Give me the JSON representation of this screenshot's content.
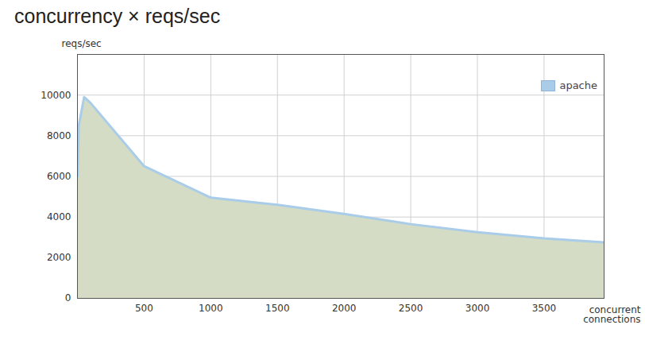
{
  "chart_data": {
    "type": "area",
    "title": "concurrency × reqs/sec",
    "x_label": "concurrent connections",
    "y_label": "reqs/sec",
    "x": [
      1,
      10,
      50,
      100,
      500,
      1000,
      1500,
      2000,
      2500,
      3000,
      3500,
      3950
    ],
    "series": [
      {
        "name": "apache",
        "color": "#a9cde9",
        "values": [
          6000,
          8500,
          9900,
          9600,
          6500,
          4950,
          4600,
          4150,
          3650,
          3250,
          2950,
          2750
        ]
      }
    ],
    "xlim": [
      0,
      3950
    ],
    "ylim": [
      0,
      12000
    ],
    "xticks": [
      500,
      1000,
      1500,
      2000,
      2500,
      3000,
      3500
    ],
    "yticks": [
      0,
      2000,
      4000,
      6000,
      8000,
      10000
    ],
    "grid": true,
    "legend": "top-right"
  }
}
